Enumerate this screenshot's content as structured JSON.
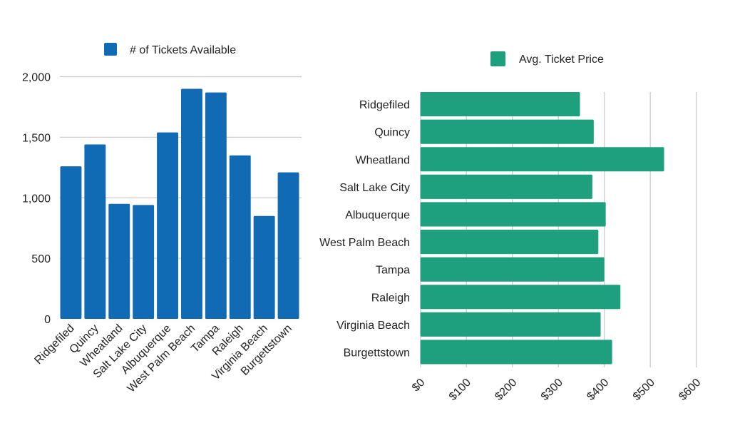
{
  "chart_data": [
    {
      "type": "bar",
      "orientation": "vertical",
      "legend": "# of Tickets Available",
      "legend_position": "top",
      "color": "#116ab4",
      "categories": [
        "Ridgefiled",
        "Quincy",
        "Wheatland",
        "Salt Lake City",
        "Albuquerque",
        "West Palm Beach",
        "Tampa",
        "Raleigh",
        "Virginia Beach",
        "Burgettstown"
      ],
      "values": [
        1260,
        1440,
        950,
        940,
        1540,
        1900,
        1870,
        1350,
        850,
        1210
      ],
      "ylim": [
        0,
        2000
      ],
      "yticks": [
        0,
        500,
        1000,
        1500,
        2000
      ],
      "ytick_labels": [
        "0",
        "500",
        "1,000",
        "1,500",
        "2,000"
      ],
      "grid": true,
      "xlabel": "",
      "ylabel": ""
    },
    {
      "type": "bar",
      "orientation": "horizontal",
      "legend": "Avg. Ticket Price",
      "legend_position": "top",
      "color": "#1ea07e",
      "categories": [
        "Ridgefiled",
        "Quincy",
        "Wheatland",
        "Salt Lake City",
        "Albuquerque",
        "West Palm Beach",
        "Tampa",
        "Raleigh",
        "Virginia Beach",
        "Burgettstown"
      ],
      "values": [
        347,
        377,
        530,
        374,
        403,
        387,
        400,
        435,
        392,
        417
      ],
      "xlim": [
        0,
        600
      ],
      "xticks": [
        0,
        100,
        200,
        300,
        400,
        500,
        600
      ],
      "xtick_labels": [
        "$0",
        "$100",
        "$200",
        "$300",
        "$400",
        "$500",
        "$600"
      ],
      "grid": true,
      "xlabel": "",
      "ylabel": ""
    }
  ]
}
